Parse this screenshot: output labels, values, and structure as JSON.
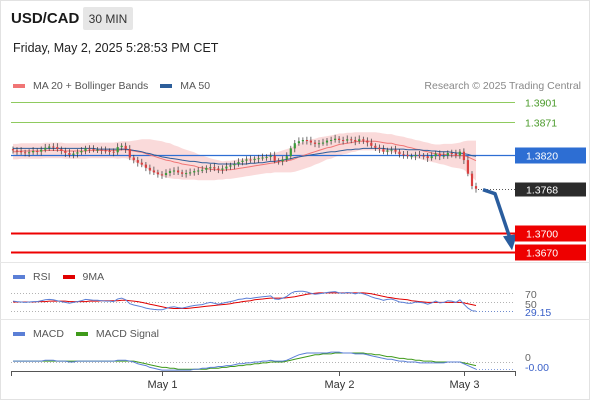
{
  "header": {
    "pair": "USD/CAD",
    "timeframe": "30 MIN",
    "datetime": "Friday, May 2, 2025 5:28:53 PM CET"
  },
  "legend": {
    "items": [
      {
        "label": "MA 20 + Bollinger Bands",
        "color": "#f07575"
      },
      {
        "label": "MA 50",
        "color": "#2d5e9a"
      }
    ],
    "research": "Research © 2025 Trading Central"
  },
  "levels": [
    {
      "value": 1.3901,
      "label": "1.3901",
      "style": "green"
    },
    {
      "value": 1.3871,
      "label": "1.3871",
      "style": "green"
    },
    {
      "value": 1.382,
      "label": "1.3820",
      "style": "blue"
    },
    {
      "value": 1.3768,
      "label": "1.3768",
      "style": "last"
    },
    {
      "value": 1.37,
      "label": "1.3700",
      "style": "red"
    },
    {
      "value": 1.367,
      "label": "1.3670",
      "style": "red"
    }
  ],
  "rsi": {
    "legend": [
      {
        "label": "RSI",
        "color": "#5b7fd6"
      },
      {
        "label": "9MA",
        "color": "#e00000"
      }
    ],
    "levels": [
      "70",
      "50",
      "30"
    ],
    "value_label": "29.15"
  },
  "macd": {
    "legend": [
      {
        "label": "MACD",
        "color": "#5b7fd6"
      },
      {
        "label": "MACD Signal",
        "color": "#3f9a1a"
      }
    ],
    "zero_label": "0",
    "value_label": "-0.00"
  },
  "x_axis": {
    "labels": [
      "May 1",
      "May 2",
      "May 3"
    ]
  },
  "colors": {
    "green": "#8fca5f",
    "blue": "#2d6ed3",
    "red": "#ee0000",
    "last": "#2b2b2b",
    "candle_up": "#3a9a3a",
    "candle_down": "#d94040",
    "band": "#f9d4d4",
    "ma20": "#f07575",
    "ma50": "#2d5e9a",
    "arrow": "#2a5d9e"
  },
  "chart_data": {
    "type": "candlestick",
    "ylim": [
      1.3655,
      1.392
    ],
    "x_ticks": [
      {
        "label": "May 1",
        "index": 37
      },
      {
        "label": "May 2",
        "index": 81
      },
      {
        "label": "May 3",
        "index": 112
      }
    ],
    "closes": [
      1.3827,
      1.3826,
      1.3824,
      1.3823,
      1.3824,
      1.3826,
      1.3825,
      1.3828,
      1.3831,
      1.3833,
      1.3832,
      1.3829,
      1.3826,
      1.3823,
      1.382,
      1.3822,
      1.3824,
      1.3826,
      1.383,
      1.3829,
      1.3828,
      1.3828,
      1.3827,
      1.3826,
      1.3825,
      1.3824,
      1.3832,
      1.3834,
      1.3829,
      1.3816,
      1.3812,
      1.3808,
      1.3805,
      1.38,
      1.3796,
      1.3793,
      1.379,
      1.3789,
      1.3792,
      1.3795,
      1.3796,
      1.3793,
      1.3791,
      1.3792,
      1.3793,
      1.3795,
      1.3796,
      1.3797,
      1.38,
      1.3801,
      1.3799,
      1.3797,
      1.3799,
      1.3802,
      1.3804,
      1.3806,
      1.3809,
      1.3811,
      1.3813,
      1.3812,
      1.3814,
      1.3815,
      1.3816,
      1.3817,
      1.3819,
      1.3811,
      1.381,
      1.3813,
      1.3818,
      1.383,
      1.3838,
      1.3841,
      1.3843,
      1.3842,
      1.3839,
      1.3837,
      1.3838,
      1.3839,
      1.3842,
      1.3843,
      1.3845,
      1.3843,
      1.3842,
      1.3844,
      1.3843,
      1.3841,
      1.3844,
      1.3842,
      1.3839,
      1.3834,
      1.3831,
      1.3829,
      1.3825,
      1.3827,
      1.3828,
      1.3825,
      1.3821,
      1.382,
      1.3818,
      1.3818,
      1.382,
      1.3819,
      1.3818,
      1.3815,
      1.3818,
      1.3822,
      1.3818,
      1.3819,
      1.3823,
      1.3822,
      1.3819,
      1.3825,
      1.3812,
      1.3791,
      1.3772,
      1.3768
    ],
    "ma20": [
      1.3825,
      1.3825,
      1.3826,
      1.3826,
      1.3826,
      1.3826,
      1.3826,
      1.3826,
      1.3827,
      1.3827,
      1.3827,
      1.3827,
      1.3827,
      1.3826,
      1.3826,
      1.3826,
      1.3826,
      1.3826,
      1.3826,
      1.3827,
      1.3827,
      1.3827,
      1.3827,
      1.3827,
      1.3827,
      1.3827,
      1.3827,
      1.3828,
      1.3828,
      1.3827,
      1.3826,
      1.3825,
      1.3824,
      1.3822,
      1.382,
      1.3818,
      1.3816,
      1.3814,
      1.3812,
      1.3811,
      1.3809,
      1.3808,
      1.3806,
      1.3805,
      1.3804,
      1.3803,
      1.3801,
      1.38,
      1.3799,
      1.3798,
      1.3797,
      1.3797,
      1.3796,
      1.3797,
      1.3797,
      1.3798,
      1.3799,
      1.38,
      1.3801,
      1.3802,
      1.3803,
      1.3804,
      1.3805,
      1.3806,
      1.3807,
      1.3808,
      1.3809,
      1.381,
      1.3811,
      1.3812,
      1.3814,
      1.3817,
      1.3819,
      1.3821,
      1.3823,
      1.3825,
      1.3827,
      1.3829,
      1.3831,
      1.3832,
      1.3834,
      1.3836,
      1.3837,
      1.3838,
      1.3839,
      1.384,
      1.3841,
      1.3841,
      1.3841,
      1.3841,
      1.3841,
      1.384,
      1.3839,
      1.3838,
      1.3838,
      1.3836,
      1.3835,
      1.3834,
      1.3832,
      1.3831,
      1.3829,
      1.3828,
      1.3826,
      1.3825,
      1.3823,
      1.3822,
      1.3821,
      1.3821,
      1.382,
      1.3819,
      1.3819,
      1.3819,
      1.3819,
      1.3817,
      1.3814,
      1.3811
    ],
    "ma50": [
      1.383,
      1.383,
      1.383,
      1.383,
      1.383,
      1.383,
      1.383,
      1.383,
      1.383,
      1.383,
      1.383,
      1.383,
      1.383,
      1.383,
      1.383,
      1.383,
      1.383,
      1.383,
      1.383,
      1.383,
      1.383,
      1.3829,
      1.3829,
      1.3829,
      1.3829,
      1.3829,
      1.3829,
      1.3829,
      1.3829,
      1.3828,
      1.3827,
      1.3826,
      1.3825,
      1.3823,
      1.3822,
      1.382,
      1.3819,
      1.3817,
      1.3816,
      1.3815,
      1.3814,
      1.3813,
      1.3812,
      1.3811,
      1.381,
      1.381,
      1.3809,
      1.3808,
      1.3808,
      1.3807,
      1.3807,
      1.3806,
      1.3806,
      1.3806,
      1.3806,
      1.3806,
      1.3806,
      1.3806,
      1.3806,
      1.3807,
      1.3807,
      1.3808,
      1.3808,
      1.3809,
      1.381,
      1.381,
      1.3811,
      1.3812,
      1.3813,
      1.3814,
      1.3816,
      1.3817,
      1.3818,
      1.3819,
      1.382,
      1.3821,
      1.3822,
      1.3823,
      1.3824,
      1.3825,
      1.3825,
      1.3826,
      1.3827,
      1.3828,
      1.3828,
      1.3829,
      1.3829,
      1.383,
      1.383,
      1.383,
      1.383,
      1.383,
      1.383,
      1.3829,
      1.3829,
      1.3829,
      1.3829,
      1.3829,
      1.3828,
      1.3828,
      1.3828,
      1.3828,
      1.3827,
      1.3827,
      1.3826,
      1.3826,
      1.3825,
      1.3825,
      1.3825,
      1.3824,
      1.3823,
      1.3823,
      1.3822,
      1.3821,
      1.3819,
      1.3818
    ],
    "band_width": [
      0.0012,
      0.0012,
      0.0012,
      0.0012,
      0.0012,
      0.0012,
      0.0012,
      0.0012,
      0.0012,
      0.0012,
      0.0012,
      0.0012,
      0.0012,
      0.0012,
      0.0012,
      0.0012,
      0.0012,
      0.0012,
      0.0012,
      0.0012,
      0.0012,
      0.0012,
      0.0012,
      0.0012,
      0.0012,
      0.0012,
      0.0013,
      0.0013,
      0.0013,
      0.0014,
      0.0016,
      0.0018,
      0.002,
      0.0022,
      0.0024,
      0.0025,
      0.0026,
      0.0027,
      0.0027,
      0.0027,
      0.0026,
      0.0025,
      0.0024,
      0.0023,
      0.0022,
      0.0021,
      0.002,
      0.0019,
      0.0018,
      0.0017,
      0.0016,
      0.0015,
      0.0014,
      0.0014,
      0.0014,
      0.0014,
      0.0014,
      0.0014,
      0.0014,
      0.0014,
      0.0014,
      0.0014,
      0.0014,
      0.0014,
      0.0015,
      0.0015,
      0.0016,
      0.0017,
      0.0018,
      0.0019,
      0.002,
      0.0021,
      0.0021,
      0.0021,
      0.0021,
      0.002,
      0.002,
      0.0019,
      0.0018,
      0.0018,
      0.0017,
      0.0017,
      0.0016,
      0.0016,
      0.0015,
      0.0015,
      0.0014,
      0.0014,
      0.0014,
      0.0014,
      0.0014,
      0.0014,
      0.0014,
      0.0014,
      0.0014,
      0.0014,
      0.0014,
      0.0014,
      0.0014,
      0.0014,
      0.0014,
      0.0014,
      0.0014,
      0.0014,
      0.0014,
      0.0014,
      0.0015,
      0.0016,
      0.0017,
      0.0018,
      0.0019,
      0.002,
      0.0022,
      0.0025,
      0.0028,
      0.0031
    ],
    "rsi_values": [
      52,
      51,
      50,
      49,
      50,
      51,
      51,
      53,
      55,
      56,
      55,
      53,
      51,
      49,
      47,
      49,
      51,
      53,
      56,
      55,
      54,
      54,
      53,
      52,
      52,
      51,
      57,
      59,
      55,
      46,
      43,
      41,
      39,
      36,
      34,
      33,
      32,
      32,
      35,
      38,
      39,
      37,
      36,
      38,
      40,
      42,
      43,
      44,
      47,
      49,
      47,
      45,
      47,
      49,
      51,
      53,
      56,
      57,
      59,
      58,
      60,
      61,
      62,
      63,
      64,
      57,
      56,
      59,
      63,
      70,
      74,
      75,
      75,
      73,
      70,
      68,
      69,
      70,
      72,
      73,
      74,
      71,
      70,
      72,
      71,
      69,
      71,
      69,
      66,
      62,
      59,
      57,
      54,
      56,
      57,
      54,
      50,
      49,
      47,
      47,
      50,
      49,
      48,
      45,
      48,
      52,
      48,
      49,
      53,
      52,
      49,
      55,
      45,
      36,
      30,
      29
    ],
    "rsi_ma": [
      50,
      50,
      50,
      50,
      50,
      50,
      51,
      51,
      51,
      52,
      52,
      52,
      52,
      52,
      51,
      51,
      51,
      51,
      51,
      52,
      52,
      52,
      53,
      53,
      53,
      53,
      53,
      54,
      54,
      53,
      52,
      51,
      49,
      47,
      45,
      43,
      41,
      39,
      37,
      36,
      35,
      35,
      35,
      35,
      36,
      37,
      38,
      39,
      40,
      41,
      42,
      43,
      44,
      45,
      46,
      48,
      49,
      51,
      52,
      53,
      55,
      56,
      57,
      58,
      59,
      59,
      59,
      59,
      60,
      61,
      62,
      64,
      66,
      68,
      69,
      70,
      71,
      71,
      71,
      71,
      71,
      71,
      71,
      71,
      71,
      71,
      71,
      71,
      70,
      69,
      67,
      65,
      63,
      61,
      60,
      58,
      57,
      56,
      55,
      53,
      52,
      51,
      50,
      49,
      49,
      49,
      49,
      49,
      49,
      49,
      49,
      49,
      48,
      46,
      44,
      42
    ],
    "macd_values": [
      0.0001,
      0.0001,
      0.0001,
      0.0001,
      0.0001,
      0.0001,
      0.0001,
      0.0001,
      0.0002,
      0.0002,
      0.0002,
      0.0001,
      0.0001,
      0.0001,
      0,
      0,
      0.0001,
      0.0001,
      0.0001,
      0.0001,
      0.0001,
      0.0001,
      0.0001,
      0.0001,
      0.0001,
      0.0001,
      0.0002,
      0.0002,
      0.0002,
      0.0001,
      0,
      -0.0002,
      -0.0003,
      -0.0004,
      -0.0006,
      -0.0007,
      -0.0008,
      -0.0009,
      -0.0009,
      -0.0009,
      -0.0009,
      -0.0009,
      -0.0009,
      -0.0009,
      -0.0009,
      -0.0008,
      -0.0008,
      -0.0007,
      -0.0007,
      -0.0006,
      -0.0006,
      -0.0005,
      -0.0005,
      -0.0004,
      -0.0004,
      -0.0003,
      -0.0002,
      -0.0002,
      -0.0001,
      -0.0001,
      0,
      0,
      0.0001,
      0.0001,
      0.0002,
      0.0001,
      0.0001,
      0.0001,
      0.0002,
      0.0004,
      0.0006,
      0.0008,
      0.0009,
      0.001,
      0.001,
      0.001,
      0.001,
      0.001,
      0.001,
      0.0011,
      0.0011,
      0.0011,
      0.001,
      0.001,
      0.001,
      0.0009,
      0.0009,
      0.0009,
      0.0008,
      0.0007,
      0.0006,
      0.0005,
      0.0004,
      0.0003,
      0.0003,
      0.0002,
      0.0001,
      0.0001,
      0,
      0,
      0,
      -0.0001,
      -0.0001,
      -0.0001,
      -0.0001,
      -0.0001,
      -0.0001,
      -0.0001,
      0,
      0,
      0,
      0,
      -0.0002,
      -0.0004,
      -0.0006,
      -0.0008
    ],
    "macd_signal": [
      0.0001,
      0.0001,
      0.0001,
      0.0001,
      0.0001,
      0.0001,
      0.0001,
      0.0001,
      0.0001,
      0.0001,
      0.0001,
      0.0001,
      0.0001,
      0.0001,
      0.0001,
      0.0001,
      0.0001,
      0.0001,
      0.0001,
      0.0001,
      0.0001,
      0.0001,
      0.0001,
      0.0001,
      0.0001,
      0.0001,
      0.0001,
      0.0001,
      0.0001,
      0.0001,
      0.0001,
      0,
      -0.0001,
      -0.0002,
      -0.0003,
      -0.0004,
      -0.0005,
      -0.0006,
      -0.0006,
      -0.0007,
      -0.0007,
      -0.0008,
      -0.0008,
      -0.0008,
      -0.0008,
      -0.0008,
      -0.0008,
      -0.0008,
      -0.0008,
      -0.0007,
      -0.0007,
      -0.0007,
      -0.0006,
      -0.0006,
      -0.0005,
      -0.0005,
      -0.0004,
      -0.0004,
      -0.0003,
      -0.0003,
      -0.0002,
      -0.0002,
      -0.0001,
      -0.0001,
      0,
      0,
      0,
      0,
      0.0001,
      0.0002,
      0.0003,
      0.0004,
      0.0005,
      0.0006,
      0.0007,
      0.0008,
      0.0008,
      0.0009,
      0.0009,
      0.0009,
      0.001,
      0.001,
      0.001,
      0.001,
      0.001,
      0.001,
      0.001,
      0.001,
      0.0009,
      0.0009,
      0.0008,
      0.0008,
      0.0007,
      0.0006,
      0.0006,
      0.0005,
      0.0004,
      0.0004,
      0.0003,
      0.0003,
      0.0002,
      0.0002,
      0.0001,
      0.0001,
      0.0001,
      0,
      0,
      0,
      0,
      0,
      0,
      0,
      -0.0001,
      -0.0002,
      -0.0003,
      -0.0004
    ],
    "projection": {
      "from": 1.3768,
      "to": 1.367
    }
  }
}
